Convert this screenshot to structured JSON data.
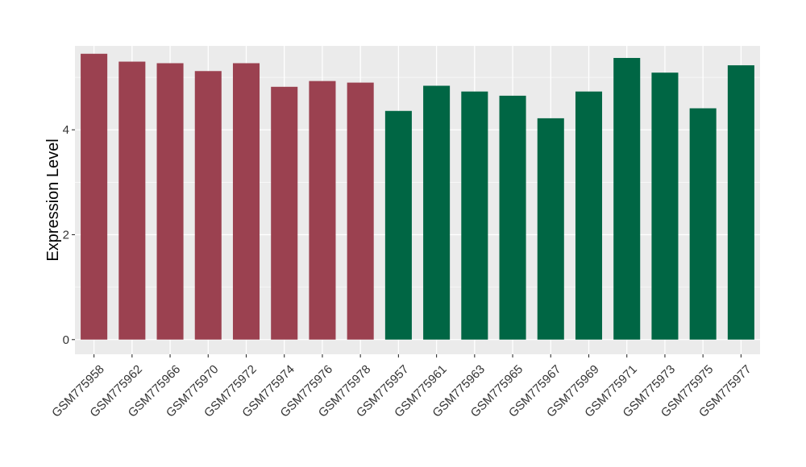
{
  "chart_data": {
    "type": "bar",
    "title": "",
    "xlabel": "",
    "ylabel": "Expression Level",
    "ylim": [
      -0.28,
      5.6
    ],
    "y_ticks": [
      0,
      2,
      4
    ],
    "grid": true,
    "legend": "none",
    "categories": [
      "GSM775958",
      "GSM775962",
      "GSM775966",
      "GSM775970",
      "GSM775972",
      "GSM775974",
      "GSM775976",
      "GSM775978",
      "GSM775957",
      "GSM775961",
      "GSM775963",
      "GSM775965",
      "GSM775967",
      "GSM775969",
      "GSM775971",
      "GSM775973",
      "GSM775975",
      "GSM775977"
    ],
    "values": [
      5.45,
      5.3,
      5.27,
      5.12,
      5.27,
      4.82,
      4.93,
      4.9,
      4.36,
      4.84,
      4.73,
      4.65,
      4.22,
      4.73,
      5.37,
      5.09,
      4.41,
      5.23
    ],
    "group_colors": [
      "#9b4150",
      "#9b4150",
      "#9b4150",
      "#9b4150",
      "#9b4150",
      "#9b4150",
      "#9b4150",
      "#9b4150",
      "#006644",
      "#006644",
      "#006644",
      "#006644",
      "#006644",
      "#006644",
      "#006644",
      "#006644",
      "#006644",
      "#006644"
    ],
    "panel_background": "#ebebeb",
    "grid_color": "#ffffff"
  }
}
